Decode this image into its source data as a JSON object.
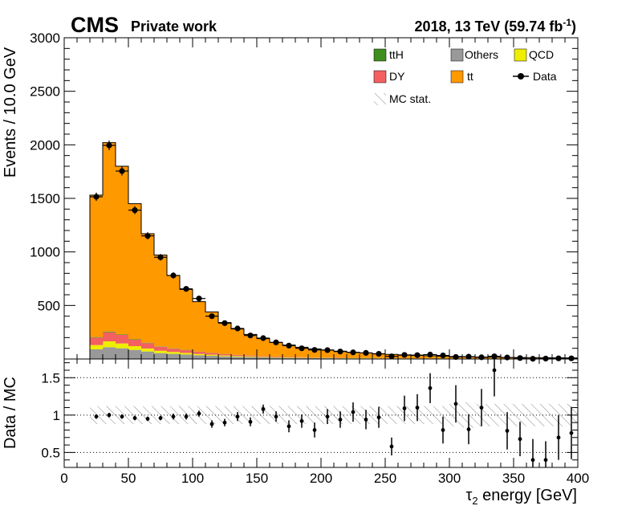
{
  "header": {
    "experiment": "CMS",
    "status": "Private work",
    "lumi_prefix": "2018, 13 TeV (59.74 fb",
    "lumi_exp": "-1",
    "lumi_suffix": ")"
  },
  "legend": {
    "ttH": "ttH",
    "others": "Others",
    "qcd": "QCD",
    "dy": "DY",
    "tt": "tt",
    "data": "Data",
    "mcstat": "MC stat."
  },
  "colors": {
    "ttH": "#3f8f1f",
    "others": "#999999",
    "qcd": "#eeee00",
    "dy": "#f46060",
    "tt": "#ff9900",
    "data": "#000000"
  },
  "chart_data": [
    {
      "type": "bar",
      "stacked": true,
      "bin_width": 10,
      "bin_low_edges": [
        20,
        30,
        40,
        50,
        60,
        70,
        80,
        90,
        100,
        110,
        120,
        130,
        140,
        150,
        160,
        170,
        180,
        190,
        200,
        210,
        220,
        230,
        240,
        250,
        260,
        270,
        280,
        290,
        300,
        310,
        320,
        330,
        340,
        350,
        360,
        370,
        380,
        390
      ],
      "series": [
        {
          "name": "Others",
          "values": [
            90,
            110,
            100,
            85,
            70,
            55,
            48,
            42,
            35,
            30,
            25,
            20,
            18,
            15,
            12,
            10,
            9,
            8,
            7,
            6,
            5,
            5,
            4,
            4,
            3,
            3,
            3,
            2,
            2,
            2,
            2,
            2,
            1,
            1,
            1,
            1,
            1,
            1
          ]
        },
        {
          "name": "QCD",
          "values": [
            40,
            55,
            45,
            35,
            28,
            22,
            18,
            15,
            12,
            10,
            8,
            7,
            6,
            5,
            4,
            4,
            3,
            3,
            3,
            2,
            2,
            2,
            2,
            1,
            1,
            1,
            1,
            1,
            1,
            1,
            1,
            1,
            1,
            1,
            1,
            1,
            1,
            1
          ]
        },
        {
          "name": "DY",
          "values": [
            70,
            85,
            80,
            60,
            50,
            38,
            30,
            25,
            20,
            16,
            12,
            10,
            8,
            7,
            6,
            5,
            4,
            4,
            3,
            3,
            2,
            2,
            2,
            2,
            1,
            1,
            1,
            1,
            1,
            1,
            1,
            1,
            1,
            1,
            1,
            1,
            1,
            1
          ]
        },
        {
          "name": "ttH",
          "values": [
            5,
            6,
            5,
            5,
            4,
            3,
            3,
            3,
            2,
            2,
            2,
            2,
            1,
            1,
            1,
            1,
            1,
            1,
            1,
            1,
            1,
            1,
            1,
            1,
            1,
            1,
            1,
            1,
            1,
            1,
            1,
            1,
            1,
            1,
            1,
            1,
            1,
            1
          ]
        },
        {
          "name": "tt",
          "values": [
            1325,
            1764,
            1570,
            1265,
            1018,
            852,
            681,
            565,
            466,
            382,
            293,
            241,
            197,
            162,
            132,
            110,
            93,
            79,
            70,
            61,
            52,
            46,
            41,
            35,
            30,
            27,
            24,
            21,
            18,
            16,
            14,
            13,
            11,
            10,
            9,
            8,
            7,
            6
          ]
        }
      ],
      "data": {
        "name": "Data",
        "values": [
          1515,
          1995,
          1755,
          1390,
          1150,
          950,
          780,
          655,
          565,
          400,
          335,
          285,
          220,
          195,
          155,
          125,
          100,
          85,
          83,
          70,
          62,
          57,
          48,
          25,
          38,
          36,
          41,
          33,
          19,
          22,
          16,
          25,
          14,
          9,
          2,
          4,
          6,
          6
        ],
        "errors": [
          39,
          45,
          42,
          37,
          34,
          31,
          28,
          26,
          24,
          20,
          18,
          17,
          15,
          14,
          12,
          11,
          10,
          9,
          9,
          8,
          8,
          8,
          7,
          5,
          6,
          6,
          6,
          6,
          4,
          5,
          4,
          5,
          4,
          3,
          1,
          2,
          2,
          2
        ]
      },
      "xlim": [
        0,
        400
      ],
      "ylim": [
        0,
        3000
      ],
      "y_ticks": [
        500,
        1000,
        1500,
        2000,
        2500,
        3000
      ],
      "ylabel": "Events / 10.0 GeV",
      "legend_position": "top-right"
    },
    {
      "type": "scatter",
      "x": [
        25,
        35,
        45,
        55,
        65,
        75,
        85,
        95,
        105,
        115,
        125,
        135,
        145,
        155,
        165,
        175,
        185,
        195,
        205,
        215,
        225,
        235,
        245,
        255,
        265,
        275,
        285,
        295,
        305,
        315,
        325,
        335,
        345,
        355,
        365,
        375,
        385,
        395
      ],
      "y": [
        0.98,
        1.0,
        0.98,
        0.96,
        0.95,
        0.96,
        0.98,
        0.98,
        1.02,
        0.88,
        0.9,
        0.98,
        0.91,
        1.08,
        0.98,
        0.85,
        0.92,
        0.8,
        0.98,
        0.94,
        1.04,
        0.94,
        0.97,
        0.58,
        1.09,
        1.1,
        1.36,
        0.8,
        1.15,
        0.81,
        1.1,
        1.6,
        0.79,
        0.68,
        0.4,
        0.4,
        0.7,
        0.76
      ],
      "yerr": [
        0.03,
        0.03,
        0.03,
        0.03,
        0.03,
        0.03,
        0.04,
        0.04,
        0.04,
        0.05,
        0.05,
        0.06,
        0.06,
        0.06,
        0.07,
        0.08,
        0.09,
        0.1,
        0.1,
        0.11,
        0.13,
        0.13,
        0.14,
        0.12,
        0.17,
        0.18,
        0.2,
        0.18,
        0.25,
        0.2,
        0.25,
        0.35,
        0.25,
        0.23,
        0.28,
        0.25,
        0.3,
        0.35
      ],
      "band_halfwidth": [
        0.12,
        0.12,
        0.12,
        0.12,
        0.12,
        0.12,
        0.12,
        0.12,
        0.12,
        0.12,
        0.12,
        0.12,
        0.12,
        0.12,
        0.12,
        0.12,
        0.12,
        0.12,
        0.12,
        0.12,
        0.12,
        0.12,
        0.12,
        0.12,
        0.12,
        0.12,
        0.12,
        0.12,
        0.15,
        0.17,
        0.15,
        0.15,
        0.15,
        0.15,
        0.15,
        0.15,
        0.15,
        0.15
      ],
      "xlim": [
        0,
        400
      ],
      "ylim": [
        0.3,
        1.75
      ],
      "y_ticks": [
        0.5,
        1,
        1.5
      ],
      "y_tick_labels": [
        "0.5",
        "1",
        "1.5"
      ],
      "x_ticks": [
        0,
        50,
        100,
        150,
        200,
        250,
        300,
        350,
        400
      ],
      "reference_lines": [
        0.5,
        1,
        1.5
      ],
      "ylabel": "Data / MC",
      "xlabel_symbol": "τ",
      "xlabel_sub": "2",
      "xlabel_rest": " energy [GeV]"
    }
  ]
}
